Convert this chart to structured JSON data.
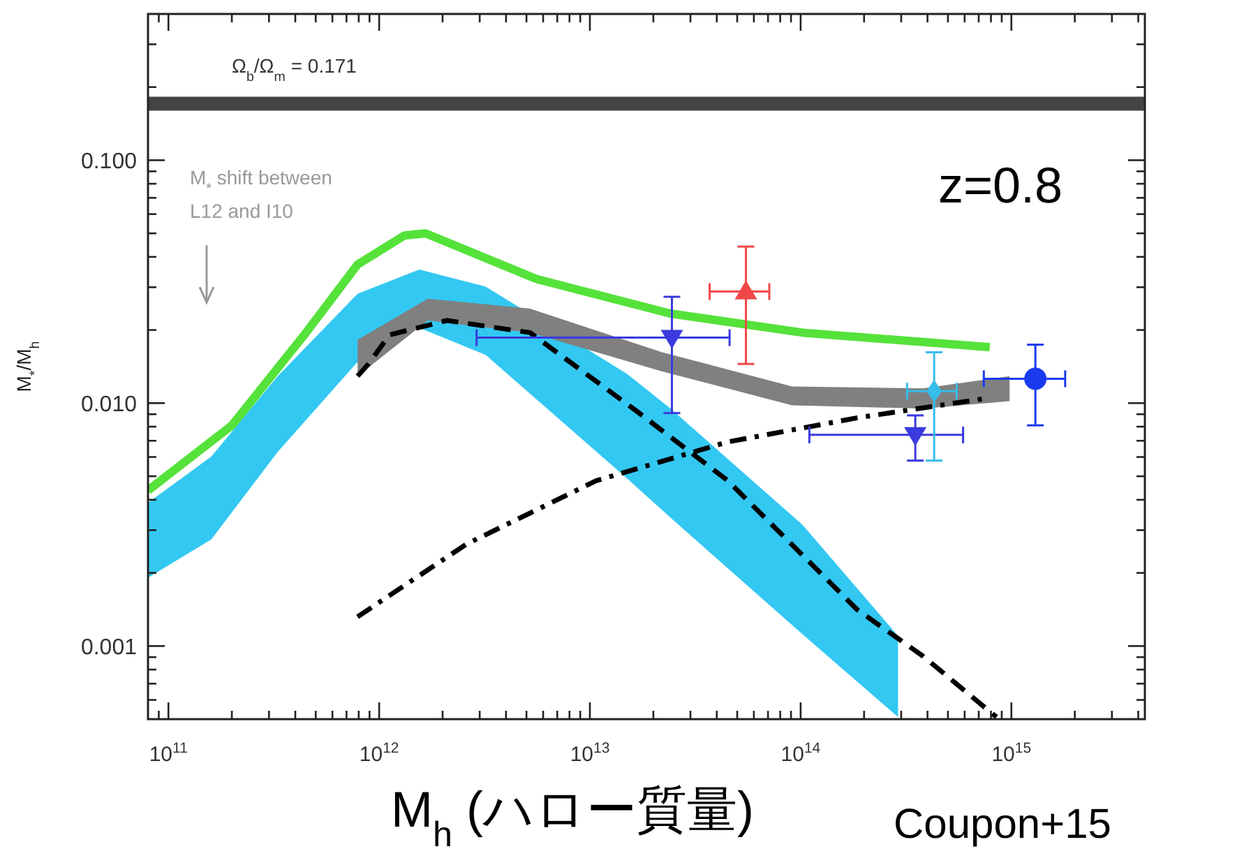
{
  "chart_data": {
    "type": "line",
    "xlabel": "M$_{h}$ (ハロー質量)",
    "ylabel": "M$_{*}$/M$_{h}$",
    "log": "xy",
    "xlim": [
      80000000000.0,
      4300000000000000.0
    ],
    "ylim": [
      0.0005,
      0.4
    ],
    "xticks": [
      {
        "value": 100000000000.0,
        "label": "10$^{11}$"
      },
      {
        "value": 1000000000000.0,
        "label": "10$^{12}$"
      },
      {
        "value": 10000000000000.0,
        "label": "10$^{13}$"
      },
      {
        "value": 100000000000000.0,
        "label": "10$^{14}$"
      },
      {
        "value": 1000000000000000.0,
        "label": "10$^{15}$"
      }
    ],
    "yticks": [
      {
        "value": 0.001,
        "label": "0.001"
      },
      {
        "value": 0.01,
        "label": "0.010"
      },
      {
        "value": 0.1,
        "label": "0.100"
      }
    ],
    "ref_lines": [
      {
        "axis": "y",
        "value": 0.171,
        "label": "Ω$_{b}$/Ω$_{m}$ = 0.171",
        "color": "#444444"
      }
    ],
    "annotations": [
      "M$_{*}$ shift between\nL12 and I10",
      "z=0.8",
      "Coupon+15"
    ],
    "series": [
      {
        "type": "area",
        "color": "#33c8f2",
        "x": [
          80000000000.0,
          160000000000.0,
          330000000000.0,
          790000000000.0,
          1550000000000.0,
          3200000000000.0,
          15000000000000.0,
          24000000000000.0,
          102000000000000.0,
          290000000000000.0
        ],
        "values": [
          null,
          null,
          null,
          null,
          null,
          null,
          null,
          null,
          null,
          null
        ],
        "upper": [
          0.00389,
          0.00603,
          0.0129,
          0.0282,
          0.0355,
          0.0302,
          0.0132,
          0.00955,
          0.00316,
          0.0011
        ],
        "lower": [
          0.00191,
          0.00275,
          0.0063,
          0.0148,
          0.0204,
          0.0158,
          0.0049,
          0.00339,
          0.00112,
          0.00051
        ]
      },
      {
        "color": "#55e23a",
        "line_style": "solid",
        "x": [
          80000000000.0,
          200000000000.0,
          450000000000.0,
          790000000000.0,
          1320000000000.0,
          1660000000000.0,
          5600000000000.0,
          24000000000000.0,
          102000000000000.0,
          790000000000000.0
        ],
        "values": [
          0.00437,
          0.0081,
          0.0195,
          0.0372,
          0.049,
          0.05,
          0.0324,
          0.0234,
          0.0195,
          0.017
        ]
      },
      {
        "type": "area",
        "color": "#808080",
        "x": [
          790000000000.0,
          1700000000000.0,
          5200000000000.0,
          22000000000000.0,
          91000000000000.0,
          380000000000000.0,
          980000000000000.0
        ],
        "values": [
          null,
          null,
          null,
          null,
          null,
          null,
          null
        ],
        "upper": [
          0.0182,
          0.0269,
          0.0245,
          0.0162,
          0.0117,
          0.0115,
          0.0129
        ],
        "lower": [
          0.0129,
          0.0219,
          0.0195,
          0.0135,
          0.0098,
          0.0095,
          0.0102
        ]
      },
      {
        "color": "#000000",
        "line_style": "dashed",
        "x": [
          790000000000.0,
          890000000000.0,
          1120000000000.0,
          2100000000000.0,
          5200000000000.0,
          16600000000000.0,
          45000000000000.0,
          186000000000000.0,
          380000000000000.0,
          850000000000000.0
        ],
        "values": [
          0.0129,
          0.0145,
          0.0191,
          0.0219,
          0.0195,
          0.0093,
          0.0048,
          0.00141,
          0.00091,
          0.00051
        ]
      },
      {
        "color": "#000000",
        "line_style": "dashdot",
        "x": [
          790000000000.0,
          2600000000000.0,
          10700000000000.0,
          45000000000000.0,
          186000000000000.0,
          780000000000000.0
        ],
        "values": [
          0.00132,
          0.00263,
          0.00479,
          0.00692,
          0.0087,
          0.0105
        ]
      },
      {
        "type": "scatter",
        "color": "#f04848",
        "marker": "triangle",
        "x": [
          55000000000000.0
        ],
        "values": [
          0.0288
        ],
        "errors": [
          [
            0.0145,
            0.0441
          ]
        ],
        "xerrors": [
          [
            37000000000000.0,
            71000000000000.0
          ]
        ]
      },
      {
        "type": "scatter",
        "color": "#3a3adf",
        "marker": "triangle-down",
        "x": [
          24500000000000.0,
          350000000000000.0
        ],
        "values": [
          0.0186,
          0.0074
        ],
        "errors": [
          [
            0.0091,
            0.0274
          ],
          [
            0.0058,
            0.0089
          ]
        ],
        "xerrors": [
          [
            2900000000000.0,
            46000000000000.0
          ],
          [
            110000000000000.0,
            590000000000000.0
          ]
        ]
      },
      {
        "type": "scatter",
        "color": "#36bde8",
        "marker": "diamond",
        "x": [
          430000000000000.0
        ],
        "values": [
          0.0112
        ],
        "errors": [
          [
            0.0058,
            0.0162
          ]
        ],
        "xerrors": [
          [
            320000000000000.0,
            550000000000000.0
          ]
        ]
      },
      {
        "type": "scatter",
        "color": "#1a3af0",
        "marker": "circle",
        "x": [
          1300000000000000.0
        ],
        "values": [
          0.0126
        ],
        "errors": [
          [
            0.0081,
            0.0174
          ]
        ],
        "xerrors": [
          [
            740000000000000.0,
            1800000000000000.0
          ]
        ]
      }
    ]
  }
}
